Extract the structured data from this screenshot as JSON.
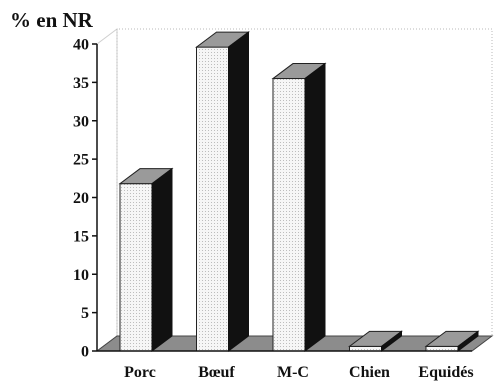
{
  "chart_data": {
    "type": "bar",
    "ylabel": "% en NR",
    "xlabel": "",
    "categories": [
      "Porc",
      "Bœuf",
      "M-C",
      "Chien",
      "Equidés"
    ],
    "values": [
      21.8,
      39.6,
      35.5,
      0.6,
      0.6
    ],
    "ylim": [
      0,
      40
    ],
    "yticks": [
      0,
      5,
      10,
      15,
      20,
      25,
      30,
      35,
      40
    ],
    "grid": false,
    "style": "3d",
    "colors": {
      "bar_front": "#f4f4f4",
      "bar_top": "#9a9a9a",
      "bar_side": "#111111",
      "floor": "#8c8c8c",
      "axis": "#111111"
    }
  }
}
